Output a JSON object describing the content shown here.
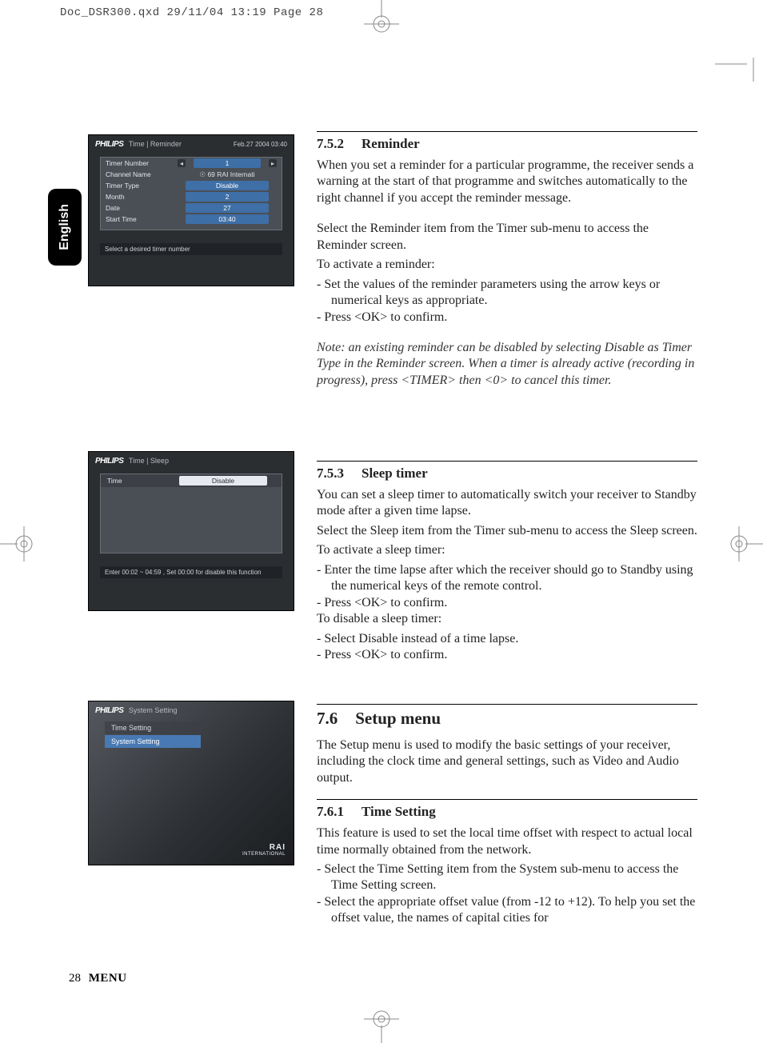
{
  "slug": "Doc_DSR300.qxd   29/11/04  13:19  Page 28",
  "side_tab": "English",
  "footer": {
    "page": "28",
    "label": "MENU"
  },
  "ss1": {
    "logo": "PHILIPS",
    "breadcrumb": "Time | Reminder",
    "datetime": "Feb.27 2004  03:40",
    "rows": [
      {
        "label": "Timer Number",
        "value": "1",
        "spinner": true
      },
      {
        "label": "Channel Name",
        "value": "☉ 69 RAI Internati",
        "plain": true
      },
      {
        "label": "Timer Type",
        "value": "Disable"
      },
      {
        "label": "Month",
        "value": "2"
      },
      {
        "label": "Date",
        "value": "27"
      },
      {
        "label": "Start Time",
        "value": "03:40"
      }
    ],
    "hint": "Select a desired timer number"
  },
  "ss2": {
    "logo": "PHILIPS",
    "breadcrumb": "Time | Sleep",
    "row_label": "Time",
    "row_value": "Disable",
    "hint": "Enter 00:02 ~ 04:59 , Set 00:00 for disable this function"
  },
  "ss3": {
    "logo": "PHILIPS",
    "breadcrumb": "System Setting",
    "items": [
      "Time Setting",
      "System Setting"
    ],
    "selected_index": 1,
    "watermark": "RAI",
    "watermark_sub": "INTERNATIONAL"
  },
  "s752": {
    "num": "7.5.2",
    "title": "Reminder",
    "p1": "When you set a reminder for a particular programme, the receiver sends a warning at the start of that programme and switches automatically to the right channel if you accept the reminder message.",
    "p2": "Select the Reminder item from the Timer sub-menu to access the Reminder screen.",
    "p3": "To activate a reminder:",
    "b1": "Set the values of the reminder parameters using the arrow keys or numerical keys as appropriate.",
    "b2": "Press <OK> to confirm.",
    "note": "Note: an existing reminder can be disabled by selecting Disable as Timer Type in the Reminder screen. When a timer is already active (recording in progress), press <TIMER> then <0> to cancel this timer."
  },
  "s753": {
    "num": "7.5.3",
    "title": "Sleep timer",
    "p1": "You can set a sleep timer to automatically switch your receiver to Standby mode after a given time lapse.",
    "p2": "Select the Sleep item from the Timer sub-menu to access the Sleep screen.",
    "p3": "To activate a sleep timer:",
    "b1": "Enter the time lapse after which the receiver should go to Standby using the numerical keys of the remote control.",
    "b2": "Press <OK> to confirm.",
    "p4": "To disable a sleep timer:",
    "b3": "Select Disable instead of a time lapse.",
    "b4": "Press <OK> to confirm."
  },
  "s76": {
    "num": "7.6",
    "title": "Setup menu",
    "p1": "The Setup menu is used to modify the basic settings of your receiver, including the clock time and general settings, such as Video and Audio output."
  },
  "s761": {
    "num": "7.6.1",
    "title": "Time Setting",
    "p1": "This feature is used to set the local time offset with respect to actual local time normally obtained from the network.",
    "b1": "Select the Time Setting item from the System sub-menu to access the Time Setting screen.",
    "b2": "Select the appropriate offset value (from -12 to +12). To help you set the offset value, the names of capital cities for"
  }
}
